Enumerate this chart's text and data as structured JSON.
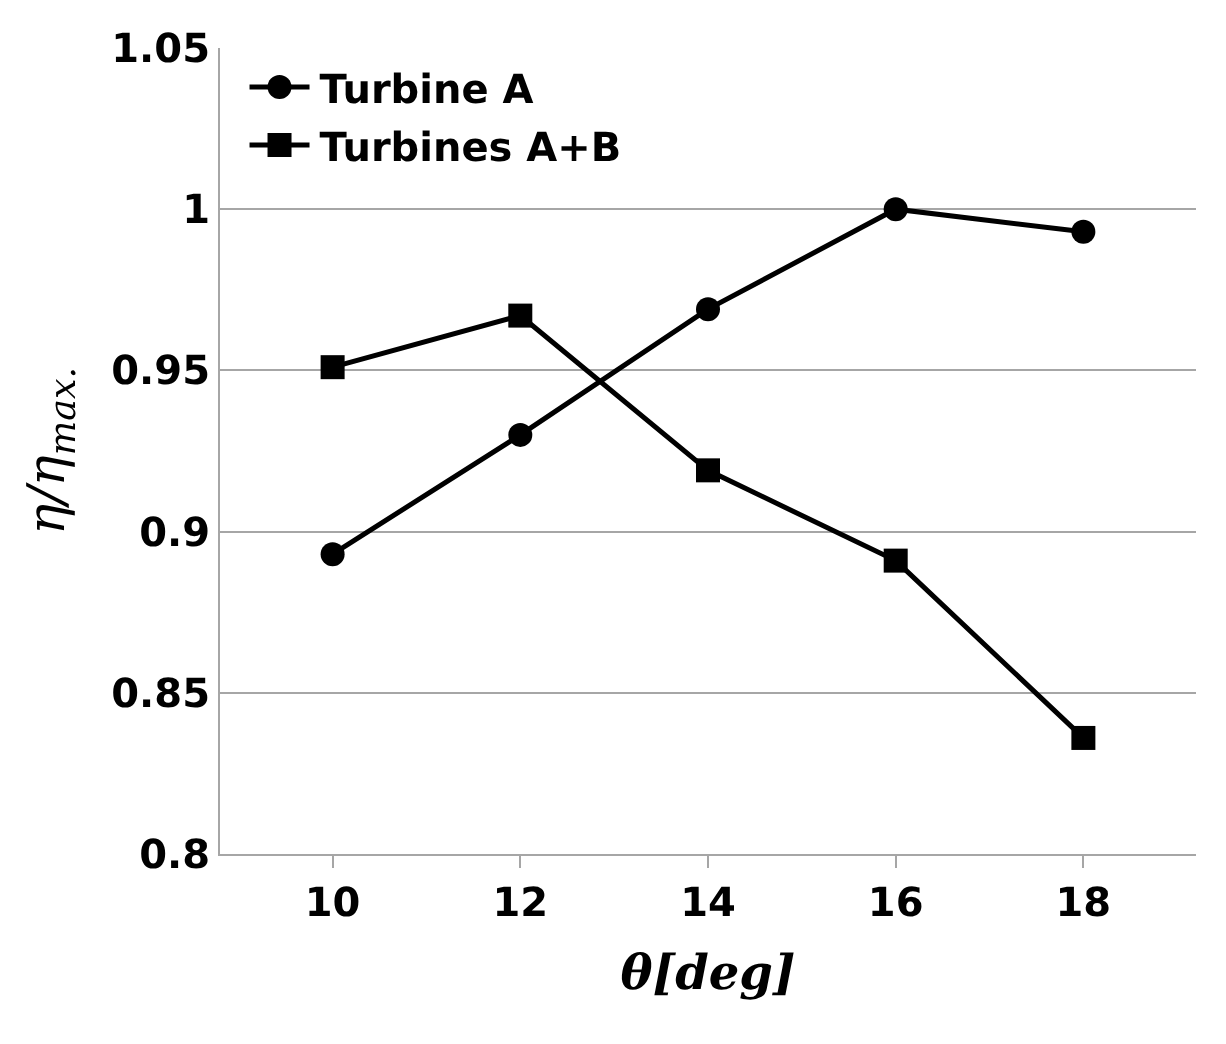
{
  "chart_data": {
    "type": "line",
    "xlabel": "θ[deg]",
    "ylabel": "η/η$_{max.}$",
    "categories": [
      "10",
      "12",
      "14",
      "16",
      "18"
    ],
    "series": [
      {
        "name": "Turbine A",
        "color": "#000000",
        "marker": "circle",
        "values": [
          0.893,
          0.93,
          0.969,
          1.0,
          0.993
        ]
      },
      {
        "name": "Turbines A+B",
        "color": "#000000",
        "marker": "square",
        "values": [
          0.951,
          0.967,
          0.919,
          0.891,
          0.836
        ]
      }
    ],
    "ylim": [
      0.8,
      1.05
    ],
    "yticks": [
      0.8,
      0.85,
      0.9,
      0.95,
      1,
      1.05
    ],
    "grid": "y",
    "legend": "top left",
    "line_style": "solid"
  }
}
